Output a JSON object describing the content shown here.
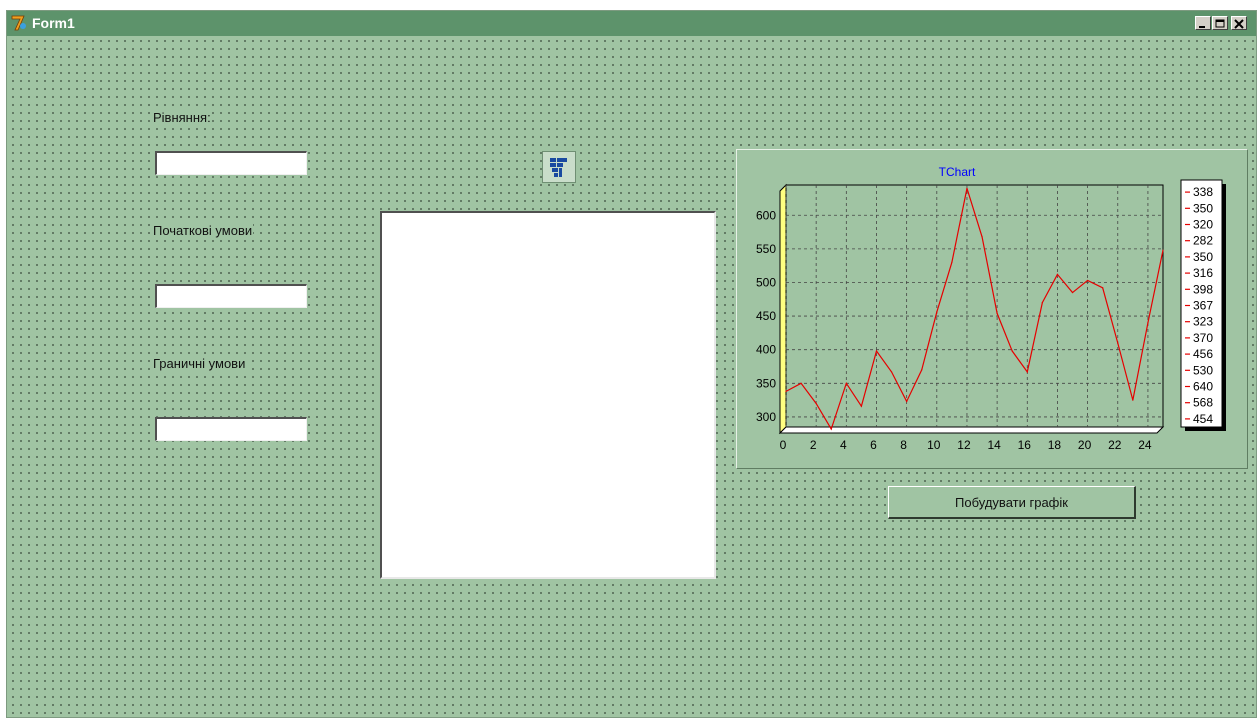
{
  "window": {
    "title": "Form1",
    "colors": {
      "titlebar": "#5d936b",
      "form": "#a0c4a3"
    }
  },
  "form": {
    "equation_label": "Рівняння:",
    "equation_value": "",
    "initial_conditions_label": "Початкові умови",
    "initial_conditions_value": "",
    "boundary_conditions_label": "Граничні умови",
    "boundary_conditions_value": "",
    "memo_text": "",
    "build_button_label": "Побудувати графік"
  },
  "chart_data": {
    "type": "line",
    "title": "TChart",
    "x": [
      0,
      1,
      2,
      3,
      4,
      5,
      6,
      7,
      8,
      9,
      10,
      11,
      12,
      13,
      14,
      15,
      16,
      17,
      18,
      19,
      20,
      21,
      22,
      23,
      24,
      25
    ],
    "values": [
      338,
      350,
      320,
      282,
      350,
      316,
      398,
      367,
      323,
      370,
      456,
      530,
      640,
      568,
      454,
      398,
      367,
      470,
      512,
      485,
      503,
      492,
      410,
      325,
      440,
      548
    ],
    "legend": [
      "338",
      "350",
      "320",
      "282",
      "350",
      "316",
      "398",
      "367",
      "323",
      "370",
      "456",
      "530",
      "640",
      "568",
      "454"
    ],
    "xticks": [
      "0",
      "2",
      "4",
      "6",
      "8",
      "10",
      "12",
      "14",
      "16",
      "18",
      "20",
      "22",
      "24"
    ],
    "yticks": [
      "300",
      "350",
      "400",
      "450",
      "500",
      "550",
      "600"
    ],
    "xlim": [
      0,
      25
    ],
    "ylim": [
      285,
      645
    ],
    "grid": true,
    "legend_position": "right",
    "line_color": "#e60000",
    "title_color": "#0000ff"
  }
}
